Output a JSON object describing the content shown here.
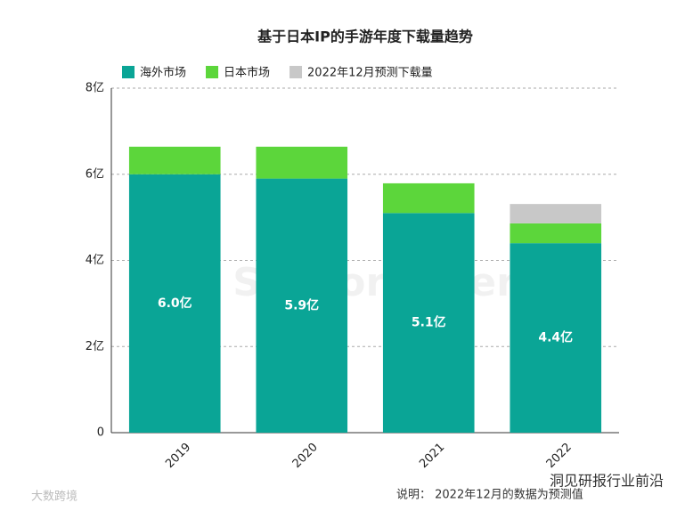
{
  "chart_data": {
    "type": "bar",
    "stacked": true,
    "title": "基于日本IP的手游年度下载量趋势",
    "categories": [
      "2019",
      "2020",
      "2021",
      "2022"
    ],
    "series": [
      {
        "name": "海外市场",
        "color": "#0aa596",
        "values": [
          6.0,
          5.9,
          5.1,
          4.4
        ],
        "value_labels": [
          "6.0亿",
          "5.9亿",
          "5.1亿",
          "4.4亿"
        ]
      },
      {
        "name": "日本市场",
        "color": "#5cd63b",
        "values": [
          0.64,
          0.74,
          0.69,
          0.46
        ]
      },
      {
        "name": "2022年12月预测下载量",
        "color": "#c8c8c8",
        "values": [
          null,
          null,
          null,
          0.45
        ]
      }
    ],
    "ylim": [
      0,
      8
    ],
    "yticks": [
      0,
      {
        "value": 2,
        "label": "2亿"
      },
      {
        "value": 4,
        "label": "4亿"
      },
      {
        "value": 6,
        "label": "6亿"
      },
      {
        "value": 8,
        "label": "8亿"
      }
    ],
    "grid": true,
    "legend": "top",
    "note": "说明：  2022年12月的数据为预测值",
    "watermarks": [
      "SensorTower",
      "洞见研报行业前沿",
      "大数跨境"
    ]
  }
}
